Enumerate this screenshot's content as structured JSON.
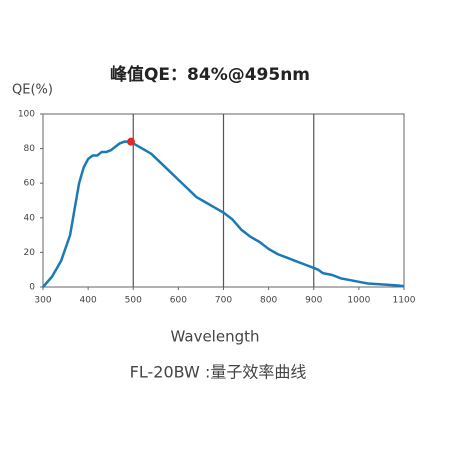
{
  "chart_data": {
    "type": "line",
    "title": "峰值QE：84%@495nm",
    "y_label": "QE(%)",
    "x_label": "Wavelength",
    "caption": "FL-20BW :量子效率曲线",
    "x": [
      300,
      320,
      340,
      360,
      370,
      380,
      390,
      400,
      410,
      420,
      430,
      440,
      450,
      460,
      470,
      480,
      495,
      500,
      520,
      540,
      560,
      580,
      600,
      620,
      640,
      660,
      680,
      700,
      720,
      740,
      760,
      780,
      800,
      820,
      840,
      860,
      880,
      900,
      910,
      920,
      940,
      960,
      980,
      1000,
      1020,
      1050,
      1080,
      1100
    ],
    "series": [
      {
        "name": "QE",
        "color": "#1a7ab8",
        "values": [
          0,
          6,
          15,
          30,
          45,
          60,
          69,
          74,
          76,
          76,
          78,
          78,
          79,
          81,
          83,
          84,
          84,
          83,
          80,
          77,
          72,
          67,
          62,
          57,
          52,
          49,
          46,
          43,
          39,
          33,
          29,
          26,
          22,
          19,
          17,
          15,
          13,
          11,
          10,
          8,
          7,
          5,
          4,
          3,
          2,
          1.5,
          1,
          0.5
        ]
      }
    ],
    "peak": {
      "x": 495,
      "y": 84,
      "color": "#e02a2a"
    },
    "xlim": [
      300,
      1100
    ],
    "xticks": [
      300,
      400,
      500,
      600,
      700,
      800,
      900,
      1000,
      1100
    ],
    "ylim": [
      0,
      100
    ],
    "yticks": [
      0,
      20,
      40,
      60,
      80,
      100
    ],
    "grid_x": [
      500,
      700,
      900
    ]
  }
}
